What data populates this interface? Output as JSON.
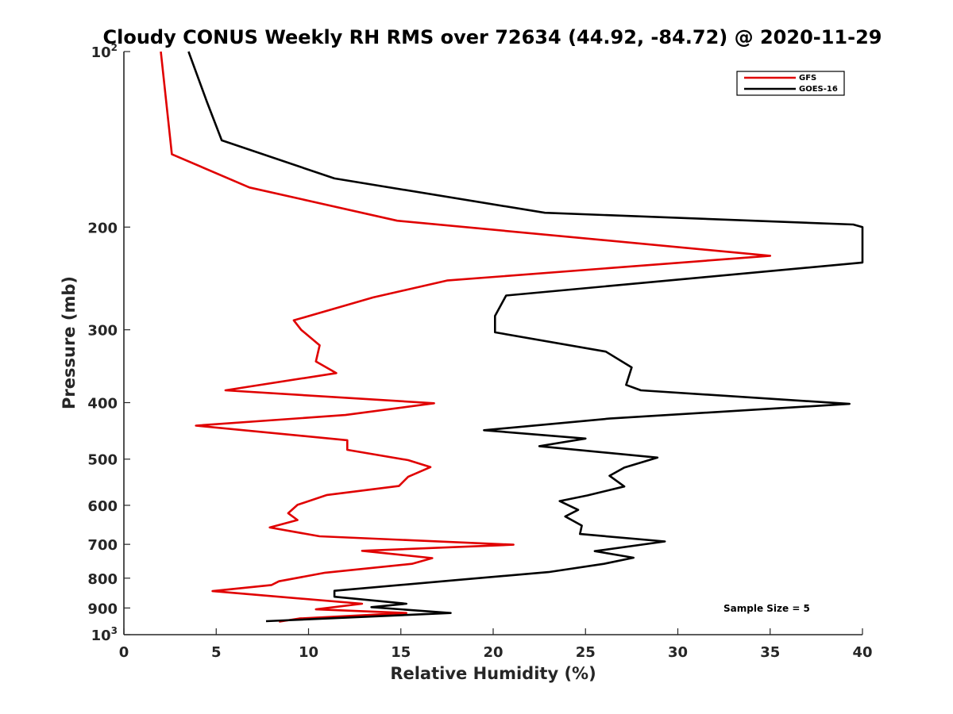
{
  "chart_data": {
    "type": "line",
    "title": "Cloudy CONUS Weekly RH RMS over 72634 (44.92, -84.72) @ 2020-11-29",
    "xlabel": "Relative Humidity (%)",
    "ylabel": "Pressure (mb)",
    "xlim": [
      0,
      40
    ],
    "ylim": [
      100,
      1000
    ],
    "y_scale": "log",
    "y_reversed": true,
    "grid": false,
    "legend_position": "top-right",
    "x_ticks": [
      "0",
      "5",
      "10",
      "15",
      "20",
      "25",
      "30",
      "35",
      "40"
    ],
    "y_ticks": [
      {
        "value": 100,
        "base": "10",
        "exp": "2"
      },
      {
        "value": 200,
        "label": "200"
      },
      {
        "value": 300,
        "label": "300"
      },
      {
        "value": 400,
        "label": "400"
      },
      {
        "value": 500,
        "label": "500"
      },
      {
        "value": 600,
        "label": "600"
      },
      {
        "value": 700,
        "label": "700"
      },
      {
        "value": 800,
        "label": "800"
      },
      {
        "value": 900,
        "label": "900"
      },
      {
        "value": 1000,
        "base": "10",
        "exp": "3"
      }
    ],
    "annotation": "Sample Size = 5",
    "series": [
      {
        "name": "GFS",
        "color": "#e00000",
        "points": [
          [
            2.0,
            100
          ],
          [
            2.6,
            150
          ],
          [
            6.8,
            171
          ],
          [
            14.8,
            195
          ],
          [
            35.0,
            224
          ],
          [
            17.5,
            247
          ],
          [
            13.5,
            264
          ],
          [
            9.2,
            289
          ],
          [
            9.6,
            300
          ],
          [
            10.6,
            319
          ],
          [
            10.4,
            340
          ],
          [
            11.5,
            356
          ],
          [
            5.5,
            381
          ],
          [
            16.8,
            401
          ],
          [
            12.0,
            420
          ],
          [
            3.9,
            438
          ],
          [
            12.1,
            464
          ],
          [
            12.1,
            482
          ],
          [
            15.4,
            502
          ],
          [
            16.6,
            516
          ],
          [
            15.4,
            536
          ],
          [
            14.9,
            556
          ],
          [
            11.0,
            576
          ],
          [
            9.4,
            599
          ],
          [
            8.9,
            619
          ],
          [
            9.4,
            636
          ],
          [
            7.9,
            655
          ],
          [
            10.6,
            678
          ],
          [
            21.1,
            701
          ],
          [
            12.9,
            718
          ],
          [
            16.7,
            739
          ],
          [
            15.6,
            756
          ],
          [
            10.9,
            783
          ],
          [
            8.4,
            810
          ],
          [
            8.0,
            822
          ],
          [
            4.8,
            842
          ],
          [
            12.9,
            885
          ],
          [
            10.4,
            905
          ],
          [
            15.3,
            918
          ],
          [
            9.5,
            938
          ],
          [
            8.4,
            950
          ]
        ]
      },
      {
        "name": "GOES-16",
        "color": "#000000",
        "points": [
          [
            3.5,
            100
          ],
          [
            4.5,
            122
          ],
          [
            5.3,
            142
          ],
          [
            11.4,
            165
          ],
          [
            22.8,
            189
          ],
          [
            39.5,
            198
          ],
          [
            40.0,
            200
          ],
          [
            40.0,
            230
          ],
          [
            31.3,
            244
          ],
          [
            20.7,
            262
          ],
          [
            20.1,
            284
          ],
          [
            20.1,
            303
          ],
          [
            26.1,
            327
          ],
          [
            27.5,
            348
          ],
          [
            27.2,
            373
          ],
          [
            28.0,
            381
          ],
          [
            39.3,
            402
          ],
          [
            26.3,
            426
          ],
          [
            19.5,
            446
          ],
          [
            25.0,
            461
          ],
          [
            22.5,
            475
          ],
          [
            28.9,
            497
          ],
          [
            27.1,
            517
          ],
          [
            26.3,
            534
          ],
          [
            27.1,
            557
          ],
          [
            25.1,
            577
          ],
          [
            23.6,
            590
          ],
          [
            24.6,
            611
          ],
          [
            23.9,
            627
          ],
          [
            24.8,
            650
          ],
          [
            24.7,
            672
          ],
          [
            29.3,
            692
          ],
          [
            25.5,
            719
          ],
          [
            27.6,
            738
          ],
          [
            26.0,
            756
          ],
          [
            23.0,
            781
          ],
          [
            18.0,
            806
          ],
          [
            11.4,
            841
          ],
          [
            11.4,
            861
          ],
          [
            15.3,
            885
          ],
          [
            13.4,
            897
          ],
          [
            17.7,
            918
          ],
          [
            7.7,
            948
          ]
        ]
      }
    ]
  }
}
